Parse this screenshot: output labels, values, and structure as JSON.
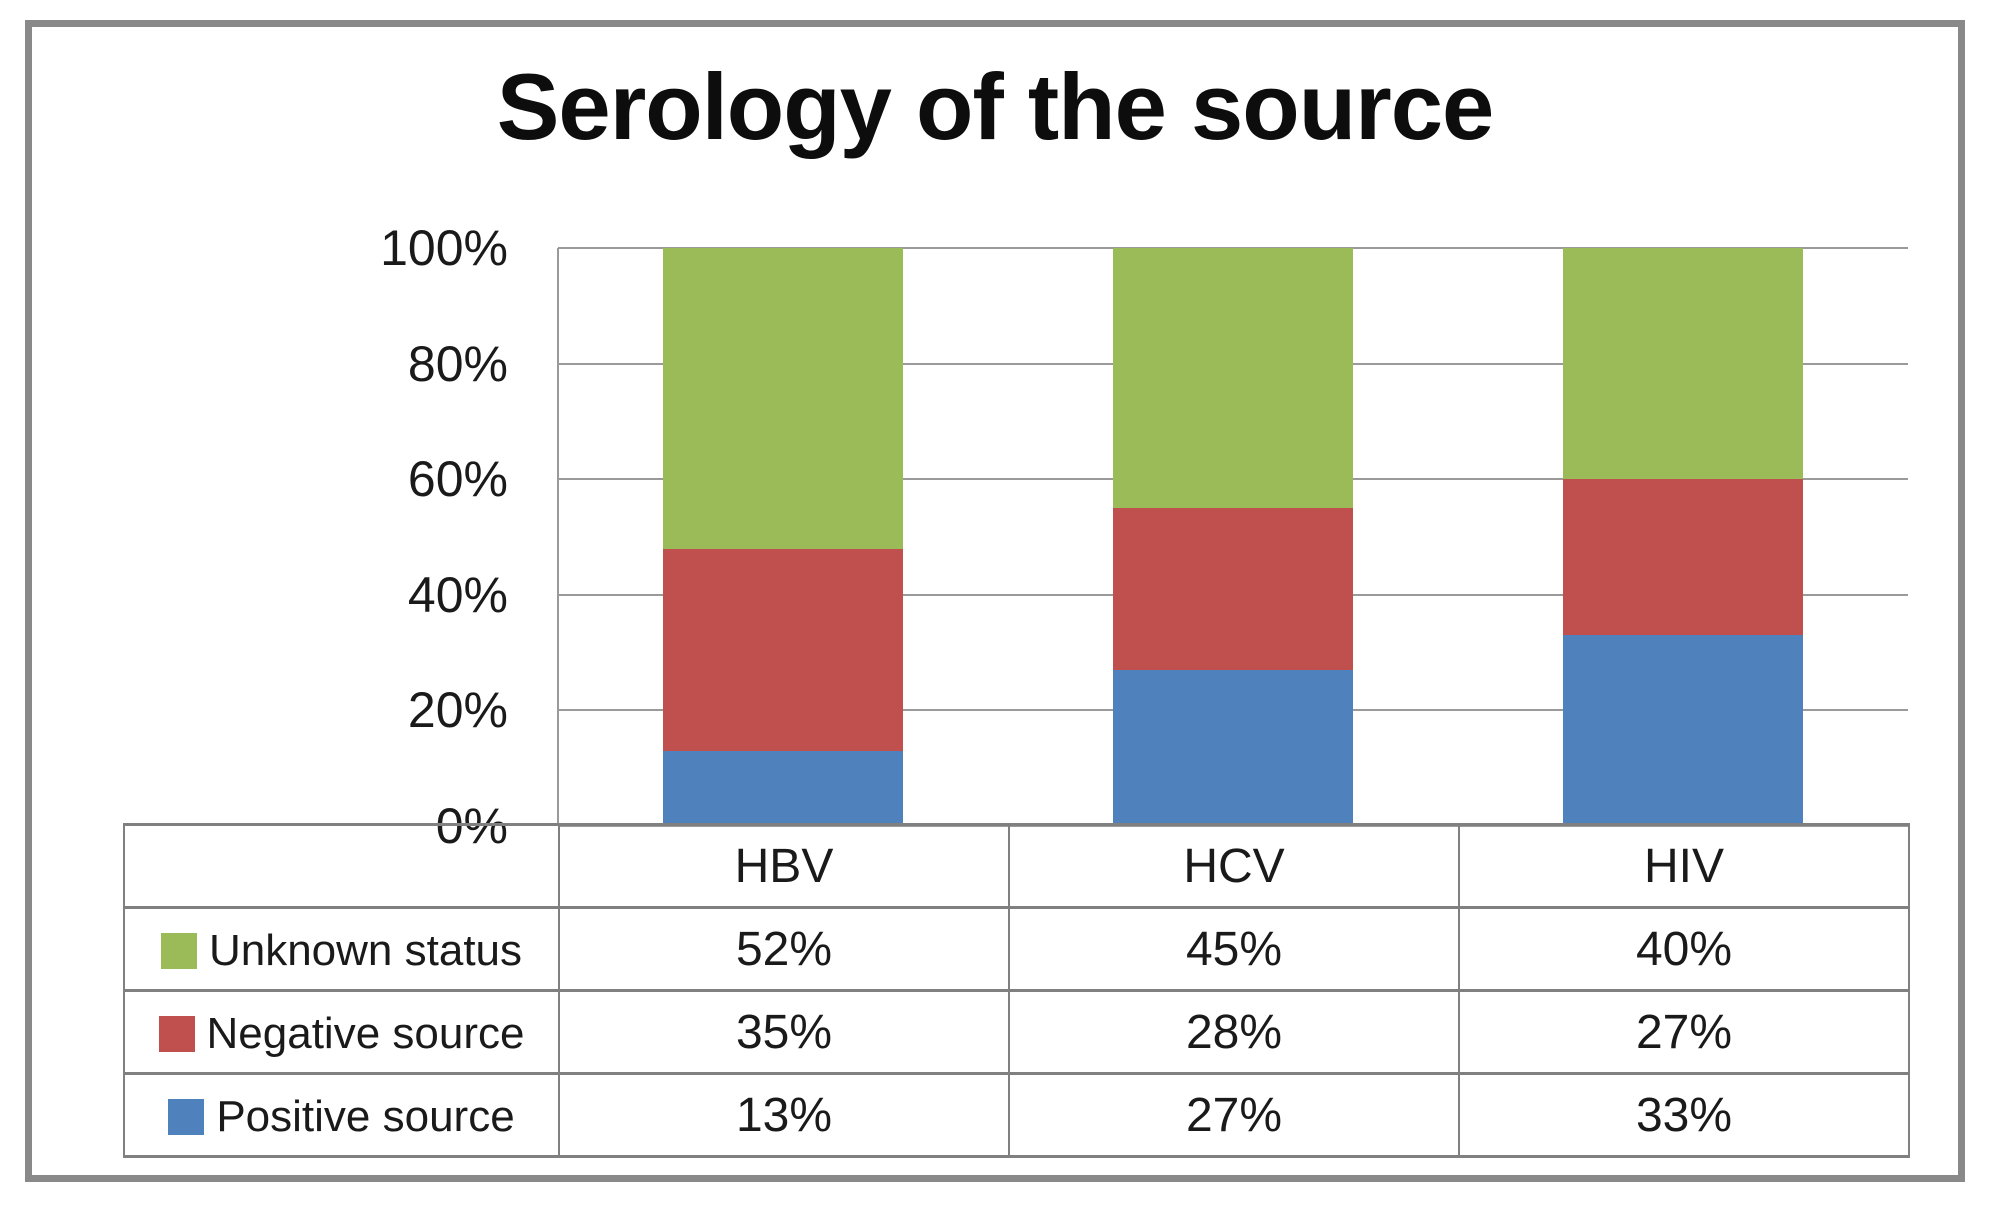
{
  "chart_data": {
    "type": "bar",
    "stacked": true,
    "title": "Serology of the source",
    "categories": [
      "HBV",
      "HCV",
      "HIV"
    ],
    "series": [
      {
        "name": "Unknown status",
        "color": "#9bbb59",
        "values": [
          52,
          45,
          40
        ],
        "display": [
          "52%",
          "45%",
          "40%"
        ]
      },
      {
        "name": "Negative source",
        "color": "#c0504d",
        "values": [
          35,
          28,
          27
        ],
        "display": [
          "35%",
          "28%",
          "27%"
        ]
      },
      {
        "name": "Positive source",
        "color": "#4f81bd",
        "values": [
          13,
          27,
          33
        ],
        "display": [
          "13%",
          "27%",
          "33%"
        ]
      }
    ],
    "stack_order_bottom_to_top": [
      "Positive source",
      "Negative source",
      "Unknown status"
    ],
    "ylim": [
      0,
      100
    ],
    "yticks": [
      {
        "label": "100%",
        "value": 100
      },
      {
        "label": "80%",
        "value": 80
      },
      {
        "label": "60%",
        "value": 60
      },
      {
        "label": "40%",
        "value": 40
      },
      {
        "label": "20%",
        "value": 20
      },
      {
        "label": "0%",
        "value": 0
      }
    ],
    "grid": true,
    "legend_position": "left-column-of-data-table",
    "data_table": true
  },
  "colors": {
    "frame_border": "#898989",
    "grid": "#9a9a9a",
    "table_border": "#808080",
    "text": "#1a1a1a",
    "background": "#ffffff"
  }
}
